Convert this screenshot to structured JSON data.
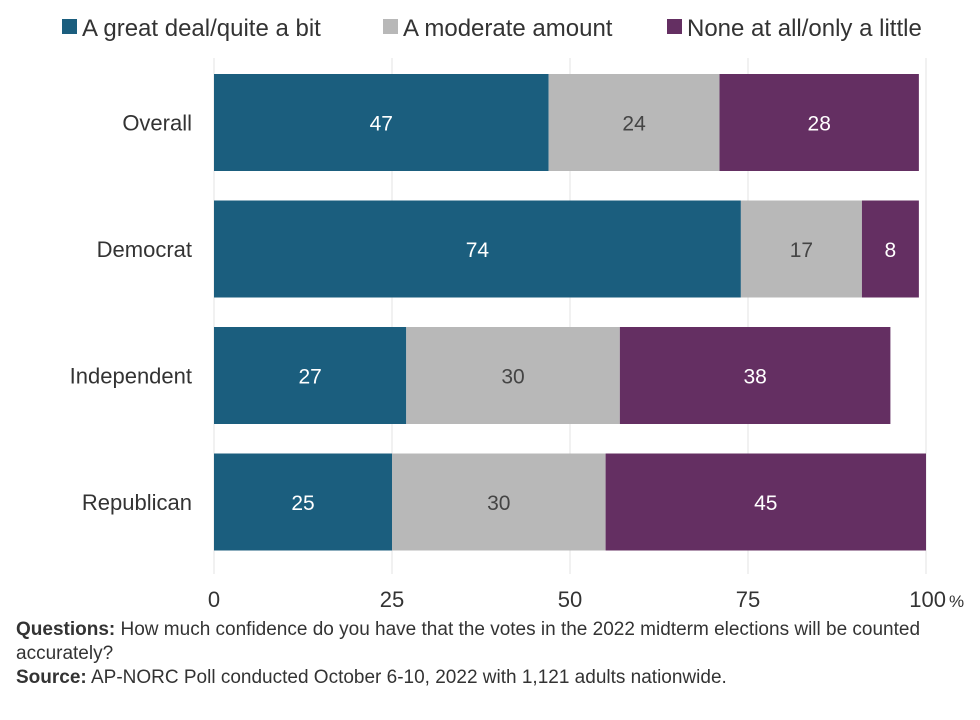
{
  "chart_data": {
    "type": "bar",
    "orientation": "horizontal",
    "stacked": true,
    "categories": [
      "Overall",
      "Democrat",
      "Independent",
      "Republican"
    ],
    "series": [
      {
        "name": "A great deal/quite a bit",
        "color": "#1b5e7e",
        "values": [
          47,
          74,
          27,
          25
        ]
      },
      {
        "name": "A moderate amount",
        "color": "#b8b8b8",
        "values": [
          24,
          17,
          30,
          30
        ]
      },
      {
        "name": "None at all/only a little",
        "color": "#642f62",
        "values": [
          28,
          8,
          38,
          45
        ]
      }
    ],
    "xlim": [
      0,
      100
    ],
    "xticks": [
      0,
      25,
      50,
      75,
      100
    ],
    "x_unit": "%",
    "grid": true,
    "legend_position": "top",
    "data_label_colors": [
      "#ffffff",
      "#444444",
      "#ffffff"
    ]
  },
  "notes": {
    "questions_label": "Questions:",
    "questions_text": " How much confidence do you have that the votes in the 2022 midterm elections will be counted accurately?",
    "source_label": "Source:",
    "source_text": " AP-NORC Poll conducted October 6-10, 2022 with 1,121 adults nationwide."
  }
}
